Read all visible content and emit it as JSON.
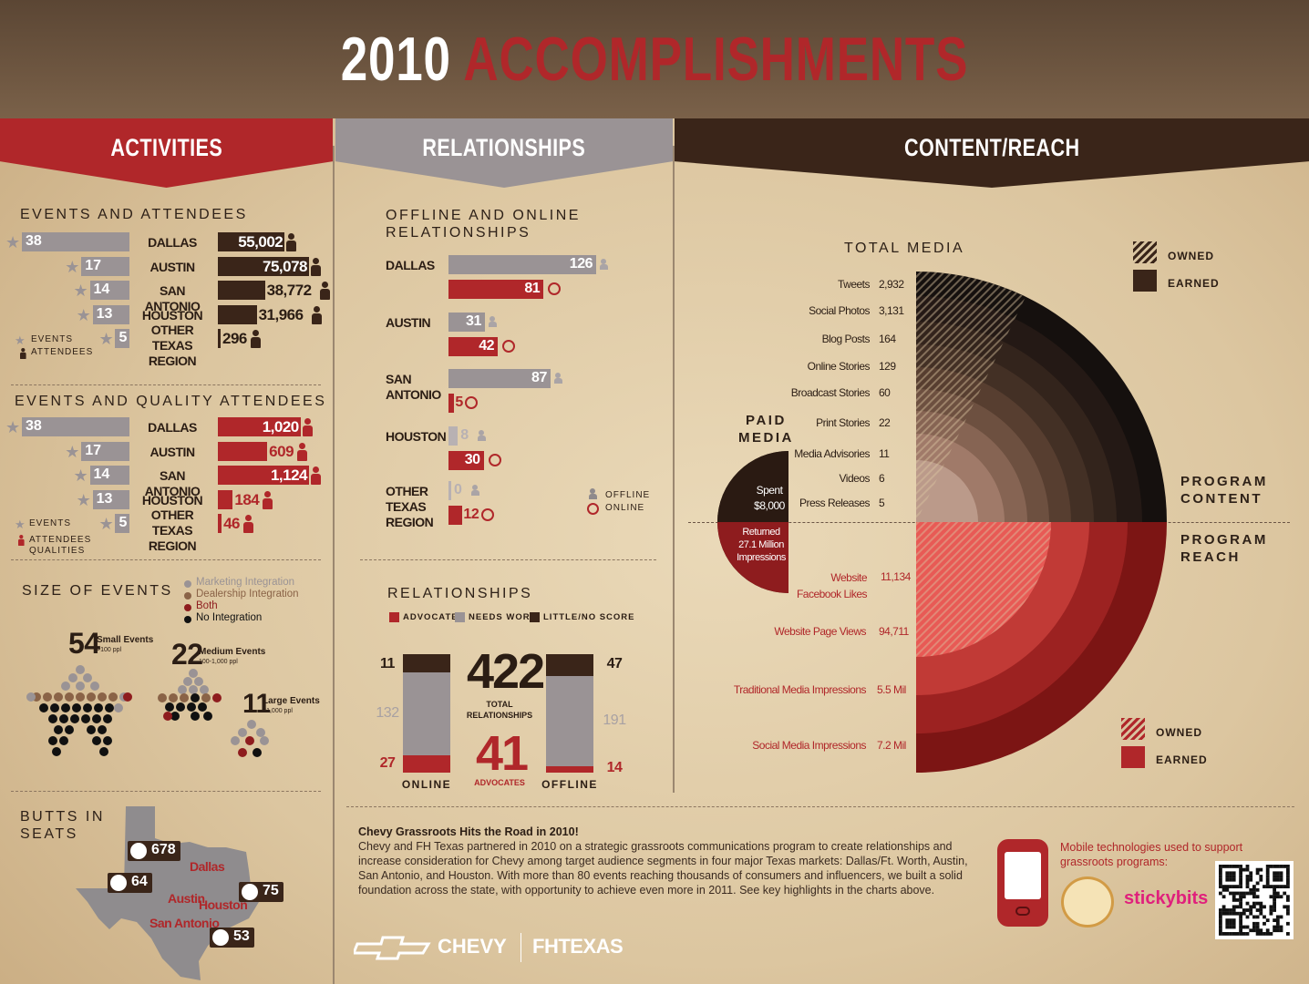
{
  "title": {
    "year": "2010",
    "word": "ACCOMPLISHMENTS"
  },
  "banners": {
    "activities": "ACTIVITIES",
    "relationships": "RELATIONSHIPS",
    "content": "CONTENT/REACH"
  },
  "events_attendees": {
    "heading": "EVENTS AND ATTENDEES",
    "rows": [
      {
        "city": "DALLAS",
        "events": 38,
        "attendees": "55,002",
        "attendees_value": 55002
      },
      {
        "city": "AUSTIN",
        "events": 17,
        "attendees": "75,078",
        "attendees_value": 75078
      },
      {
        "city": "SAN ANTONIO",
        "events": 14,
        "attendees": "38,772",
        "attendees_value": 38772
      },
      {
        "city": "HOUSTON",
        "events": 13,
        "attendees": "31,966",
        "attendees_value": 31966
      },
      {
        "city": "OTHER TEXAS REGION",
        "events": 5,
        "attendees": "296",
        "attendees_value": 296
      }
    ],
    "legend_events": "EVENTS",
    "legend_attendees": "ATTENDEES"
  },
  "quality_attendees": {
    "heading": "EVENTS AND QUALITY ATTENDEES",
    "rows": [
      {
        "city": "DALLAS",
        "events": 38,
        "quality": "1,020",
        "quality_value": 1020
      },
      {
        "city": "AUSTIN",
        "events": 17,
        "quality": "609",
        "quality_value": 609
      },
      {
        "city": "SAN ANTONIO",
        "events": 14,
        "quality": "1,124",
        "quality_value": 1124
      },
      {
        "city": "HOUSTON",
        "events": 13,
        "quality": "184",
        "quality_value": 184
      },
      {
        "city": "OTHER TEXAS REGION",
        "events": 5,
        "quality": "46",
        "quality_value": 46
      }
    ],
    "legend_events": "EVENTS",
    "legend_attendees": "ATTENDEES QUALITIES"
  },
  "size_of_events": {
    "heading": "SIZE OF EVENTS",
    "legend": [
      {
        "label": "Marketing Integration",
        "color": "#9a9395"
      },
      {
        "label": "Dealership Integration",
        "color": "#8a6347"
      },
      {
        "label": "Both",
        "color": "#8e1c1e"
      },
      {
        "label": "No Integration",
        "color": "#111111"
      }
    ],
    "groups": [
      {
        "count": "54",
        "label": "Small Events",
        "sub": ">100 ppl"
      },
      {
        "count": "22",
        "label": "Medium Events",
        "sub": "100-1,000 ppl"
      },
      {
        "count": "11",
        "label": "Large Events",
        "sub": "<1,000 ppl"
      }
    ]
  },
  "butts": {
    "heading_1": "BUTTS IN",
    "heading_2": "SEATS",
    "cities": [
      {
        "city": "Dallas",
        "value": "678"
      },
      {
        "city": "Austin",
        "value": "64"
      },
      {
        "city": "Houston",
        "value": "75"
      },
      {
        "city": "San Antonio",
        "value": "53"
      }
    ]
  },
  "relationships_offline_online": {
    "heading_1": "OFFLINE AND ONLINE",
    "heading_2": "RELATIONSHIPS",
    "rows": [
      {
        "city": "DALLAS",
        "offline": 126,
        "online": 81
      },
      {
        "city": "AUSTIN",
        "offline": 31,
        "online": 42
      },
      {
        "city": "SAN ANTONIO",
        "offline": 87,
        "online": 5
      },
      {
        "city": "HOUSTON",
        "offline": 8,
        "online": 30
      },
      {
        "city": "OTHER TEXAS REGION",
        "offline": 0,
        "online": 12
      }
    ],
    "legend_offline": "OFFLINE",
    "legend_online": "ONLINE"
  },
  "relationships_quality": {
    "heading": "RELATIONSHIPS",
    "legend": [
      {
        "label": "ADVOCATES",
        "color": "#b0272a"
      },
      {
        "label": "NEEDS WORK",
        "color": "#9a9395"
      },
      {
        "label": "LITTLE/NO SCORE",
        "color": "#3a2519"
      }
    ],
    "online": {
      "label": "ONLINE",
      "little": 11,
      "needs": 132,
      "advocates": 27
    },
    "offline": {
      "label": "OFFLINE",
      "little": 47,
      "needs": 191,
      "advocates": 14
    },
    "total": "422",
    "total_label_1": "TOTAL",
    "total_label_2": "RELATIONSHIPS",
    "advocates": "41",
    "advocates_label": "ADVOCATES"
  },
  "content": {
    "total_media": "TOTAL MEDIA",
    "legend_top": [
      {
        "label": "OWNED"
      },
      {
        "label": "EARNED"
      }
    ],
    "legend_bottom": [
      {
        "label": "OWNED"
      },
      {
        "label": "EARNED"
      }
    ],
    "program_content_1": "PROGRAM",
    "program_content_2": "CONTENT",
    "program_reach_1": "PROGRAM",
    "program_reach_2": "REACH",
    "paid_media_1": "PAID",
    "paid_media_2": "MEDIA",
    "spent_1": "Spent",
    "spent_2": "$8,000",
    "returned_1": "Returned",
    "returned_2": "27.1 Million",
    "returned_3": "Impressions"
  },
  "chart_data": [
    {
      "type": "bar",
      "title": "EVENTS AND ATTENDEES",
      "categories": [
        "DALLAS",
        "AUSTIN",
        "SAN ANTONIO",
        "HOUSTON",
        "OTHER TEXAS REGION"
      ],
      "series": [
        {
          "name": "EVENTS",
          "values": [
            38,
            17,
            14,
            13,
            5
          ]
        },
        {
          "name": "ATTENDEES",
          "values": [
            55002,
            75078,
            38772,
            31966,
            296
          ]
        }
      ]
    },
    {
      "type": "bar",
      "title": "EVENTS AND QUALITY ATTENDEES",
      "categories": [
        "DALLAS",
        "AUSTIN",
        "SAN ANTONIO",
        "HOUSTON",
        "OTHER TEXAS REGION"
      ],
      "series": [
        {
          "name": "EVENTS",
          "values": [
            38,
            17,
            14,
            13,
            5
          ]
        },
        {
          "name": "ATTENDEES QUALITIES",
          "values": [
            1020,
            609,
            1124,
            184,
            46
          ]
        }
      ]
    },
    {
      "type": "bar",
      "title": "OFFLINE AND ONLINE RELATIONSHIPS",
      "categories": [
        "DALLAS",
        "AUSTIN",
        "SAN ANTONIO",
        "HOUSTON",
        "OTHER TEXAS REGION"
      ],
      "series": [
        {
          "name": "OFFLINE",
          "values": [
            126,
            31,
            87,
            8,
            0
          ]
        },
        {
          "name": "ONLINE",
          "values": [
            81,
            42,
            5,
            30,
            12
          ]
        }
      ]
    },
    {
      "type": "bar",
      "title": "RELATIONSHIPS",
      "categories": [
        "ONLINE",
        "OFFLINE"
      ],
      "series": [
        {
          "name": "ADVOCATES",
          "values": [
            27,
            14
          ]
        },
        {
          "name": "NEEDS WORK",
          "values": [
            132,
            191
          ]
        },
        {
          "name": "LITTLE/NO SCORE",
          "values": [
            11,
            47
          ]
        }
      ]
    },
    {
      "type": "pie",
      "title": "TOTAL MEDIA",
      "program_content": [
        {
          "label": "Tweets",
          "value": "2,932",
          "color": "#15100e"
        },
        {
          "label": "Social Photos",
          "value": "3,131",
          "color": "#241915"
        },
        {
          "label": "Blog Posts",
          "value": "164",
          "color": "#33241c"
        },
        {
          "label": "Online Stories",
          "value": "129",
          "color": "#433025"
        },
        {
          "label": "Broadcast Stories",
          "value": "60",
          "color": "#573e30"
        },
        {
          "label": "Print Stories",
          "value": "22",
          "color": "#6d5040"
        },
        {
          "label": "Media Advisories",
          "value": "11",
          "color": "#866453"
        },
        {
          "label": "Videos",
          "value": "6",
          "color": "#a07a69"
        },
        {
          "label": "Press Releases",
          "value": "5",
          "color": "#bb9a8a"
        }
      ],
      "program_reach": [
        {
          "label": "Website Facebook Likes",
          "value": "11,134",
          "color": "#e85a55"
        },
        {
          "label": "Website Page Views",
          "value": "94,711",
          "color": "#c13a36"
        },
        {
          "label": "Traditional Media Impressions",
          "value": "5.5 Mil",
          "color": "#9c2221"
        },
        {
          "label": "Social Media Impressions",
          "value": "7.2 Mil",
          "color": "#7c1514"
        }
      ],
      "paid_media": {
        "spent": "$8,000",
        "returned": "27.1 Million Impressions"
      }
    }
  ],
  "footer": {
    "heading": "Chevy Grassroots Hits the Road in 2010!",
    "body": "Chevy and FH Texas partnered in 2010 on a strategic grassroots communications program to create relationships and increase consideration for Chevy among target audience segments in four major Texas markets: Dallas/Ft. Worth, Austin, San Antonio, and Houston. With more than 80 events reaching thousands of consumers and influencers, we built a solid foundation across the state, with opportunity to achieve even more in 2011. See key highlights in the charts above.",
    "brand_1": "CHEVY",
    "brand_2": "FHTEXAS",
    "mobile_text": "Mobile technologies used to support grassroots programs:",
    "stickybits": "stickybits"
  }
}
